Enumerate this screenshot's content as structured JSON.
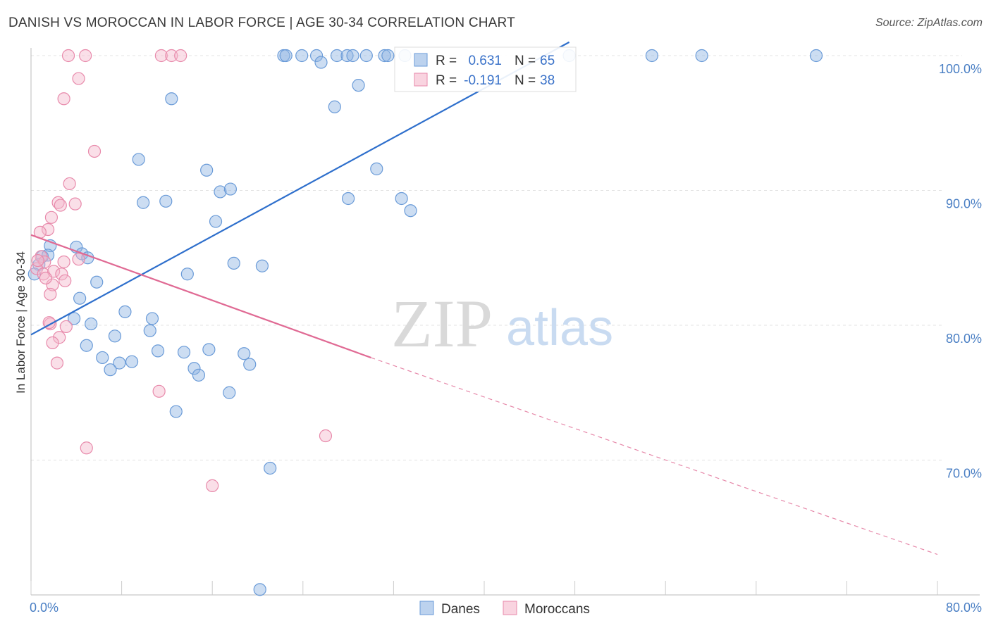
{
  "title": "DANISH VS MOROCCAN IN LABOR FORCE | AGE 30-34 CORRELATION CHART",
  "source": "Source: ZipAtlas.com",
  "watermark": {
    "zip": "ZIP",
    "atlas": "atlas"
  },
  "chart_data": {
    "type": "scatter",
    "ylabel": "In Labor Force | Age 30-34",
    "x_tick_labels": [
      "0.0%",
      "80.0%"
    ],
    "y_tick_labels": [
      "100.0%",
      "90.0%",
      "80.0%",
      "70.0%"
    ],
    "y_ticks": [
      100,
      90,
      80,
      70
    ],
    "xlim": [
      0,
      80
    ],
    "ylim": [
      60,
      104
    ],
    "grid": true,
    "legend_position": "top-center",
    "legend": [
      {
        "name": "Danes",
        "r_label": "R =",
        "r_value": "0.631",
        "n_label": "N =",
        "n_value": "65"
      },
      {
        "name": "Moroccans",
        "r_label": "R =",
        "r_value": "-0.191",
        "n_label": "N =",
        "n_value": "38"
      }
    ],
    "series": [
      {
        "name": "Danes",
        "color": "#8fb4e3",
        "stroke": "#6a9bd8",
        "line_color": "#2e6fcc",
        "trend": {
          "x0": 0,
          "y0": 79.3,
          "x1": 47.5,
          "y1": 101.0
        },
        "points": [
          [
            22.3,
            100
          ],
          [
            22.5,
            100
          ],
          [
            23.9,
            100
          ],
          [
            25.2,
            100
          ],
          [
            27.0,
            100
          ],
          [
            27.9,
            100
          ],
          [
            28.4,
            100
          ],
          [
            29.6,
            100
          ],
          [
            31.2,
            100
          ],
          [
            31.5,
            100
          ],
          [
            33.0,
            100
          ],
          [
            47.5,
            100
          ],
          [
            54.8,
            100
          ],
          [
            59.2,
            100
          ],
          [
            69.3,
            100
          ],
          [
            25.6,
            99.5
          ],
          [
            28.9,
            97.8
          ],
          [
            12.4,
            96.8
          ],
          [
            26.8,
            96.2
          ],
          [
            9.5,
            92.3
          ],
          [
            30.5,
            91.6
          ],
          [
            15.5,
            91.5
          ],
          [
            16.7,
            89.9
          ],
          [
            17.6,
            90.1
          ],
          [
            28.0,
            89.4
          ],
          [
            33.5,
            88.5
          ],
          [
            9.9,
            89.1
          ],
          [
            11.9,
            89.2
          ],
          [
            32.7,
            89.4
          ],
          [
            16.3,
            87.7
          ],
          [
            1.7,
            85.9
          ],
          [
            4.0,
            85.8
          ],
          [
            4.5,
            85.3
          ],
          [
            5.0,
            85.0
          ],
          [
            1.0,
            85.1
          ],
          [
            0.7,
            84.5
          ],
          [
            0.3,
            83.8
          ],
          [
            17.9,
            84.6
          ],
          [
            20.4,
            84.4
          ],
          [
            13.8,
            83.8
          ],
          [
            5.8,
            83.2
          ],
          [
            4.3,
            82.0
          ],
          [
            8.3,
            81.0
          ],
          [
            10.7,
            80.5
          ],
          [
            3.8,
            80.5
          ],
          [
            5.3,
            80.1
          ],
          [
            7.4,
            79.2
          ],
          [
            10.5,
            79.6
          ],
          [
            4.9,
            78.5
          ],
          [
            11.2,
            78.1
          ],
          [
            13.5,
            78.0
          ],
          [
            15.7,
            78.2
          ],
          [
            18.8,
            77.9
          ],
          [
            6.3,
            77.6
          ],
          [
            7.8,
            77.2
          ],
          [
            8.9,
            77.3
          ],
          [
            19.3,
            77.1
          ],
          [
            14.4,
            76.8
          ],
          [
            7.0,
            76.7
          ],
          [
            14.8,
            76.3
          ],
          [
            17.5,
            75.0
          ],
          [
            12.8,
            73.6
          ],
          [
            21.1,
            69.4
          ],
          [
            20.2,
            60.4
          ],
          [
            1.5,
            85.2
          ]
        ]
      },
      {
        "name": "Moroccans",
        "color": "#f5b8cc",
        "stroke": "#e88aab",
        "line_color": "#e06a94",
        "trend": {
          "x0": 0,
          "y0": 86.7,
          "x1": 30.0,
          "y1": 77.6
        },
        "trend_dashed": {
          "x0": 30.0,
          "y0": 77.6,
          "x1": 80.0,
          "y1": 63.0
        },
        "points": [
          [
            3.3,
            100
          ],
          [
            4.8,
            100
          ],
          [
            11.5,
            100
          ],
          [
            12.4,
            100
          ],
          [
            13.2,
            100
          ],
          [
            4.2,
            98.3
          ],
          [
            2.9,
            96.8
          ],
          [
            5.6,
            92.9
          ],
          [
            3.4,
            90.5
          ],
          [
            2.4,
            89.1
          ],
          [
            2.6,
            88.9
          ],
          [
            3.9,
            89.0
          ],
          [
            1.8,
            88.0
          ],
          [
            1.5,
            87.1
          ],
          [
            0.8,
            86.9
          ],
          [
            0.9,
            85.1
          ],
          [
            1.2,
            84.7
          ],
          [
            0.5,
            84.2
          ],
          [
            0.6,
            84.8
          ],
          [
            1.1,
            83.8
          ],
          [
            2.0,
            84.0
          ],
          [
            2.7,
            83.8
          ],
          [
            3.0,
            83.3
          ],
          [
            1.9,
            83.0
          ],
          [
            4.2,
            84.9
          ],
          [
            2.9,
            84.7
          ],
          [
            1.7,
            82.3
          ],
          [
            1.7,
            80.1
          ],
          [
            1.6,
            80.2
          ],
          [
            3.1,
            79.9
          ],
          [
            2.5,
            79.1
          ],
          [
            1.9,
            78.7
          ],
          [
            2.3,
            77.2
          ],
          [
            11.3,
            75.1
          ],
          [
            26.0,
            71.8
          ],
          [
            4.9,
            70.9
          ],
          [
            16.0,
            68.1
          ],
          [
            1.3,
            83.5
          ]
        ]
      }
    ]
  }
}
